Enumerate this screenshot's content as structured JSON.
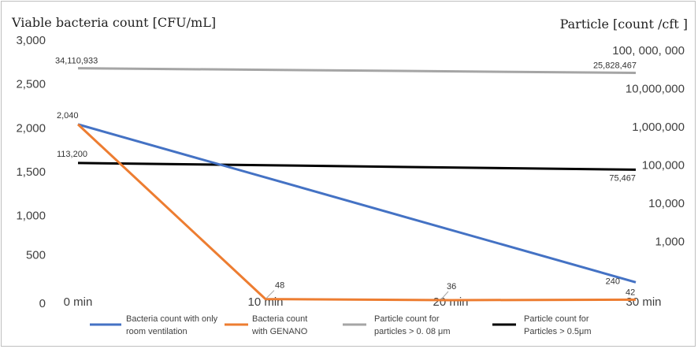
{
  "chart_data": {
    "type": "line",
    "left_axis_title": "Viable bacteria count [CFU/mL]",
    "right_axis_title": "Particle [count /cft ]",
    "categories": [
      "0 min",
      "10 min",
      "20 min",
      "30 min"
    ],
    "left_ticks": [
      "3,000",
      "2,500",
      "2,000",
      "1,500",
      "1,000",
      "500",
      "0"
    ],
    "left_ylim": [
      0,
      3000
    ],
    "right_ticks": [
      "100, 000, 000",
      "10,000,000",
      "1,000,000",
      "100,000",
      "10,000",
      "1,000"
    ],
    "right_scale": "log",
    "series": [
      {
        "name": "Bacteria count with only room ventilation",
        "color": "#4472c4",
        "axis": "left",
        "x": [
          "0 min",
          "30 min"
        ],
        "values": [
          2040,
          240
        ],
        "labels": [
          "2,040",
          "240"
        ]
      },
      {
        "name": "Bacteria count with GENANO",
        "color": "#ed7d31",
        "axis": "left",
        "x": [
          "0 min",
          "10 min",
          "20 min",
          "30 min"
        ],
        "values": [
          2040,
          48,
          36,
          42
        ],
        "labels": [
          "",
          "48",
          "36",
          "42"
        ]
      },
      {
        "name": "Particle count for particles > 0. 08 μm",
        "color": "#a5a5a5",
        "axis": "right",
        "x": [
          "0 min",
          "30 min"
        ],
        "values": [
          34110933,
          25828467
        ],
        "labels": [
          "34,110,933",
          "25,828,467"
        ]
      },
      {
        "name": "Particle count for Particles > 0.5μm",
        "color": "#000000",
        "axis": "right",
        "x": [
          "0 min",
          "30 min"
        ],
        "values": [
          113200,
          75467
        ],
        "labels": [
          "113,200",
          "75,467"
        ]
      }
    ],
    "legend": "bottom",
    "grid": false
  }
}
